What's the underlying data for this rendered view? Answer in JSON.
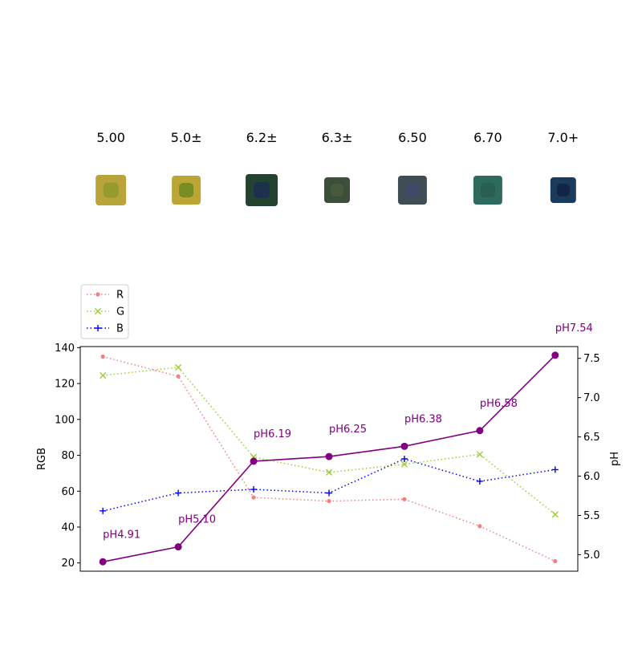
{
  "swatches": {
    "labels": [
      "5.00",
      "5.0±",
      "6.2±",
      "6.3±",
      "6.50",
      "6.70",
      "7.0+"
    ],
    "colors": [
      "#b8a43a",
      "#bba534",
      "#22432f",
      "#3c4f3a",
      "#3f4e55",
      "#2d6b5c",
      "#1a3b5c"
    ],
    "inner_colors": [
      "#8f9a2c",
      "#6c8a22",
      "#1c2e55",
      "#4a5c40",
      "#3e4a6a",
      "#2a5a52",
      "#0e2345"
    ]
  },
  "chart_data": {
    "type": "line",
    "x": [
      1,
      2,
      3,
      4,
      5,
      6,
      7
    ],
    "series": [
      {
        "name": "R",
        "axis": "left",
        "color": "#f08080",
        "marker": "dot",
        "linestyle": "dotted",
        "values": [
          135,
          124,
          56.5,
          54.5,
          55.5,
          40.5,
          21
        ]
      },
      {
        "name": "G",
        "axis": "left",
        "color": "#9acd32",
        "marker": "x",
        "linestyle": "dotted",
        "values": [
          124.5,
          129,
          79,
          70.5,
          75,
          80.5,
          47
        ]
      },
      {
        "name": "B",
        "axis": "left",
        "color": "#0000ff",
        "marker": "plus",
        "linestyle": "dotted",
        "values": [
          49,
          59,
          61,
          59,
          78,
          65.5,
          72
        ]
      },
      {
        "axis": "right",
        "color": "#800080",
        "marker": "circle",
        "linestyle": "solid",
        "values": [
          4.91,
          5.1,
          6.19,
          6.25,
          6.38,
          6.58,
          7.54
        ]
      }
    ],
    "annotations": [
      "pH4.91",
      "pH5.10",
      "pH6.19",
      "pH6.25",
      "pH6.38",
      "pH6.58",
      "pH7.54"
    ],
    "ylabel": "RGB",
    "ylabel_right": "pH",
    "ylim": [
      15.4,
      140.6
    ],
    "ylim_right": [
      4.79,
      7.65
    ],
    "yticks": [
      "20",
      "40",
      "60",
      "80",
      "100",
      "120",
      "140"
    ],
    "yticks_right": [
      "5.0",
      "5.5",
      "6.0",
      "6.5",
      "7.0",
      "7.5"
    ],
    "legend_position": "upper-left",
    "grid": false
  }
}
